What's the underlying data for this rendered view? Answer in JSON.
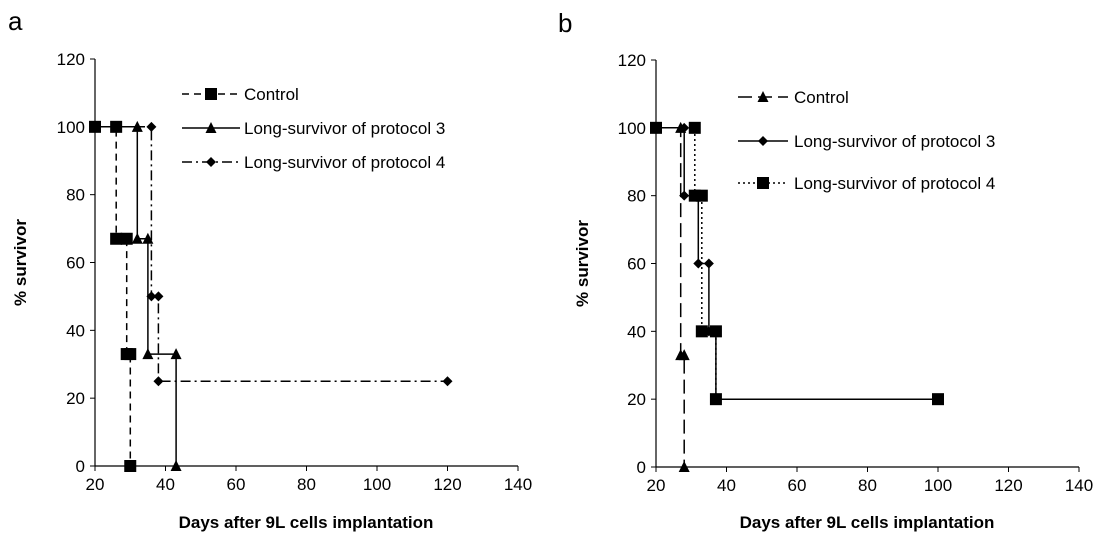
{
  "chart_data": [
    {
      "panel": "a",
      "type": "line",
      "step": true,
      "xlabel": "Days after 9L cells implantation",
      "ylabel": "% survivor",
      "xlim": [
        20,
        140
      ],
      "ylim": [
        0,
        120
      ],
      "xticks": [
        20,
        40,
        60,
        80,
        100,
        120,
        140
      ],
      "yticks": [
        0,
        20,
        40,
        60,
        80,
        100,
        120
      ],
      "grid": false,
      "legend_position": "top-right",
      "series": [
        {
          "name": "Control",
          "marker": "square",
          "dash": "dashed",
          "points": [
            [
              20,
              100
            ],
            [
              26,
              100
            ],
            [
              26,
              67
            ],
            [
              29,
              67
            ],
            [
              29,
              33
            ],
            [
              30,
              33
            ],
            [
              30,
              0
            ]
          ]
        },
        {
          "name": "Long-survivor of protocol 3",
          "marker": "triangle",
          "dash": "solid",
          "points": [
            [
              20,
              100
            ],
            [
              32,
              100
            ],
            [
              32,
              67
            ],
            [
              35,
              67
            ],
            [
              35,
              33
            ],
            [
              43,
              33
            ],
            [
              43,
              0
            ]
          ]
        },
        {
          "name": "Long-survivor of protocol 4",
          "marker": "diamond",
          "dash": "dashdot",
          "points": [
            [
              20,
              100
            ],
            [
              36,
              100
            ],
            [
              36,
              50
            ],
            [
              38,
              50
            ],
            [
              38,
              25
            ],
            [
              120,
              25
            ]
          ]
        }
      ]
    },
    {
      "panel": "b",
      "type": "line",
      "step": true,
      "xlabel": "Days after 9L cells implantation",
      "ylabel": "% survivor",
      "xlim": [
        20,
        140
      ],
      "ylim": [
        0,
        120
      ],
      "xticks": [
        20,
        40,
        60,
        80,
        100,
        120,
        140
      ],
      "yticks": [
        0,
        20,
        40,
        60,
        80,
        100,
        120
      ],
      "grid": false,
      "legend_position": "top-right",
      "series": [
        {
          "name": "Control",
          "marker": "triangle",
          "dash": "longdash",
          "points": [
            [
              20,
              100
            ],
            [
              27,
              100
            ],
            [
              27,
              33
            ],
            [
              28,
              33
            ],
            [
              28,
              0
            ]
          ]
        },
        {
          "name": "Long-survivor of protocol 3",
          "marker": "diamond",
          "dash": "solid",
          "points": [
            [
              20,
              100
            ],
            [
              28,
              100
            ],
            [
              28,
              80
            ],
            [
              32,
              80
            ],
            [
              32,
              60
            ],
            [
              35,
              60
            ],
            [
              35,
              40
            ],
            [
              37,
              40
            ],
            [
              37,
              20
            ],
            [
              100,
              20
            ]
          ]
        },
        {
          "name": "Long-survivor of protocol 4",
          "marker": "square",
          "dash": "dotted",
          "points": [
            [
              20,
              100
            ],
            [
              31,
              100
            ],
            [
              31,
              80
            ],
            [
              33,
              80
            ],
            [
              33,
              40
            ],
            [
              37,
              40
            ],
            [
              37,
              20
            ],
            [
              100,
              20
            ]
          ]
        }
      ]
    }
  ]
}
